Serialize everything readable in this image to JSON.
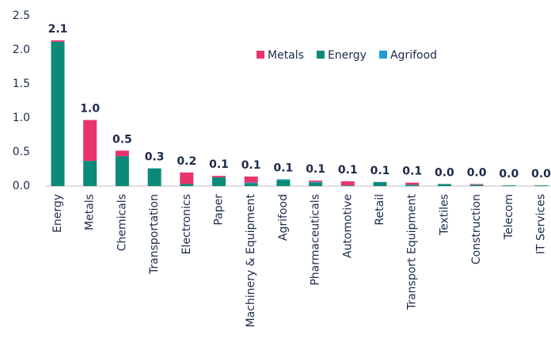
{
  "chart_data": {
    "type": "stacked_bar",
    "categories": [
      "Energy",
      "Metals",
      "Chemicals",
      "Transportation",
      "Electronics",
      "Paper",
      "Machinery & Equipment",
      "Agrifood",
      "Pharmaceuticals",
      "Automotive",
      "Retail",
      "Transport Equipment",
      "Textiles",
      "Construction",
      "Telecom",
      "IT Services"
    ],
    "series": [
      {
        "name": "Metals",
        "color": "#e8336b",
        "values": [
          0.02,
          0.6,
          0.08,
          0,
          0.17,
          0.02,
          0.09,
          0,
          0.02,
          0.06,
          0,
          0.03,
          0,
          0.01,
          0,
          0
        ]
      },
      {
        "name": "Energy",
        "color": "#0b8a7a",
        "values": [
          2.12,
          0.37,
          0.44,
          0.26,
          0.03,
          0.13,
          0.04,
          0.09,
          0.05,
          0.01,
          0.06,
          0.02,
          0.03,
          0.02,
          0.01,
          0.01
        ]
      },
      {
        "name": "Agrifood",
        "color": "#1a9ed4",
        "values": [
          0,
          0,
          0,
          0,
          0,
          0,
          0.01,
          0.01,
          0.01,
          0,
          0,
          0,
          0,
          0,
          0,
          0
        ]
      }
    ],
    "total_labels": [
      "2.1",
      "1.0",
      "0.5",
      "0.3",
      "0.2",
      "0.1",
      "0.1",
      "0.1",
      "0.1",
      "0.1",
      "0.1",
      "0.1",
      "0.0",
      "0.0",
      "0.0",
      "0.0"
    ],
    "ylim": [
      0,
      2.5
    ],
    "yticks": [
      {
        "value": 0,
        "label": "0.0"
      },
      0.5,
      {
        "value": 1,
        "label": "1.0"
      },
      1.5,
      {
        "value": 2,
        "label": "2.0"
      },
      2.5
    ],
    "grid": false,
    "legend": "upper right"
  }
}
